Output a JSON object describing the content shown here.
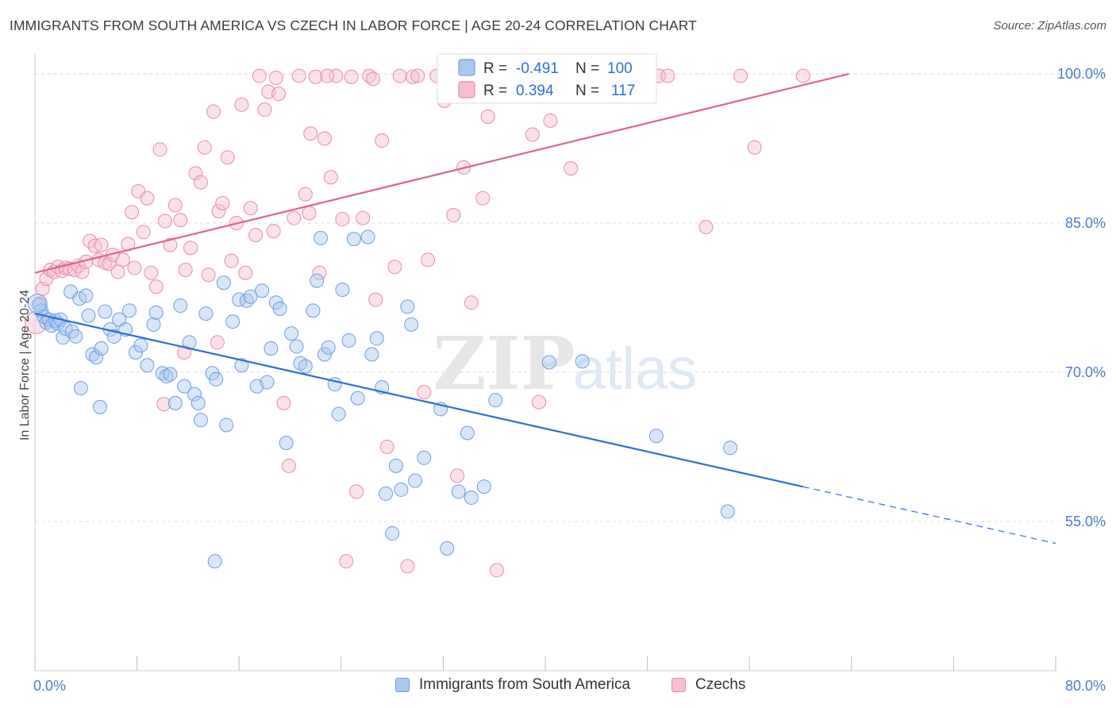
{
  "title": "IMMIGRANTS FROM SOUTH AMERICA VS CZECH IN LABOR FORCE | AGE 20-24 CORRELATION CHART",
  "source": "Source: ZipAtlas.com",
  "watermark": {
    "zip": "ZIP",
    "atlas": "atlas"
  },
  "colors": {
    "blue_fill": "#a8c8f0",
    "blue_stroke": "#6b9ee0",
    "blue_line": "#2a6fd6",
    "pink_fill": "#f7bfd0",
    "pink_stroke": "#e88aa8",
    "pink_line": "#e0628a",
    "axis_text": "#4a7cc9"
  },
  "legend_box": {
    "row1": {
      "r_label": "R =",
      "r_value": "-0.491",
      "n_label": "N =",
      "n_value": "100"
    },
    "row2": {
      "r_label": "R =",
      "r_value": "0.394",
      "n_label": "N =",
      "n_value": "117"
    }
  },
  "chart_data": {
    "type": "scatter",
    "title": "IMMIGRANTS FROM SOUTH AMERICA VS CZECH IN LABOR FORCE | AGE 20-24 CORRELATION CHART",
    "xlabel": "",
    "ylabel": "In Labor Force | Age 20-24",
    "xlim": [
      0,
      80
    ],
    "ylim": [
      40,
      102
    ],
    "x_tick_labels": [
      "0.0%",
      "80.0%"
    ],
    "y_ticks": [
      55,
      70,
      85,
      100
    ],
    "y_tick_labels": [
      "55.0%",
      "70.0%",
      "85.0%",
      "100.0%"
    ],
    "grid": "horizontal dashed",
    "legend_position": "bottom",
    "series": [
      {
        "name": "Immigrants from South America",
        "color": "#a8c8f0",
        "R": -0.491,
        "N": 100,
        "trend": {
          "x_start": 0,
          "y_start": 75.9,
          "x_solid_end": 60.2,
          "y_solid_end": 58.5,
          "x_end": 80,
          "y_end": 52.8
        },
        "points": [
          [
            0.3,
            76.8
          ],
          [
            0.5,
            76.2
          ],
          [
            0.7,
            75.6
          ],
          [
            0.9,
            75.0
          ],
          [
            1.1,
            75.3
          ],
          [
            1.3,
            74.7
          ],
          [
            1.6,
            75.2
          ],
          [
            1.8,
            74.9
          ],
          [
            2.0,
            75.3
          ],
          [
            2.2,
            73.5
          ],
          [
            2.4,
            74.4
          ],
          [
            2.9,
            74.1
          ],
          [
            3.2,
            73.6
          ],
          [
            2.8,
            78.1
          ],
          [
            3.5,
            77.4
          ],
          [
            4.0,
            77.7
          ],
          [
            4.2,
            75.7
          ],
          [
            4.5,
            71.8
          ],
          [
            4.8,
            71.5
          ],
          [
            5.2,
            72.4
          ],
          [
            5.5,
            76.1
          ],
          [
            5.9,
            74.3
          ],
          [
            6.2,
            73.6
          ],
          [
            6.6,
            75.3
          ],
          [
            7.1,
            74.3
          ],
          [
            7.4,
            76.2
          ],
          [
            7.9,
            72.0
          ],
          [
            8.3,
            72.7
          ],
          [
            8.8,
            70.7
          ],
          [
            9.3,
            74.8
          ],
          [
            9.5,
            76.0
          ],
          [
            10.0,
            69.9
          ],
          [
            10.3,
            69.6
          ],
          [
            10.6,
            69.8
          ],
          [
            11.0,
            66.9
          ],
          [
            11.4,
            76.7
          ],
          [
            11.7,
            68.6
          ],
          [
            12.1,
            73.0
          ],
          [
            12.5,
            67.8
          ],
          [
            12.8,
            66.9
          ],
          [
            13.0,
            65.2
          ],
          [
            13.4,
            75.9
          ],
          [
            13.9,
            69.9
          ],
          [
            14.2,
            69.3
          ],
          [
            14.8,
            79.0
          ],
          [
            15.0,
            64.7
          ],
          [
            15.5,
            75.1
          ],
          [
            16.0,
            77.3
          ],
          [
            16.2,
            70.7
          ],
          [
            16.6,
            77.2
          ],
          [
            16.9,
            77.6
          ],
          [
            17.4,
            68.6
          ],
          [
            17.8,
            78.2
          ],
          [
            18.2,
            69.0
          ],
          [
            18.5,
            72.4
          ],
          [
            18.9,
            77.0
          ],
          [
            19.2,
            76.4
          ],
          [
            19.7,
            62.9
          ],
          [
            20.1,
            73.9
          ],
          [
            20.5,
            72.6
          ],
          [
            20.8,
            70.9
          ],
          [
            21.2,
            70.6
          ],
          [
            21.8,
            76.2
          ],
          [
            22.1,
            79.2
          ],
          [
            22.4,
            83.5
          ],
          [
            22.7,
            71.8
          ],
          [
            23.0,
            72.5
          ],
          [
            23.5,
            68.8
          ],
          [
            23.8,
            65.8
          ],
          [
            24.1,
            78.3
          ],
          [
            24.6,
            73.2
          ],
          [
            25.0,
            83.4
          ],
          [
            25.3,
            67.4
          ],
          [
            26.1,
            83.6
          ],
          [
            26.4,
            71.8
          ],
          [
            26.8,
            73.4
          ],
          [
            27.2,
            68.5
          ],
          [
            27.5,
            57.8
          ],
          [
            28.0,
            53.8
          ],
          [
            28.3,
            60.6
          ],
          [
            28.7,
            58.2
          ],
          [
            29.2,
            76.6
          ],
          [
            29.5,
            74.8
          ],
          [
            29.8,
            59.1
          ],
          [
            30.5,
            61.4
          ],
          [
            31.8,
            66.3
          ],
          [
            32.3,
            52.3
          ],
          [
            33.2,
            58.0
          ],
          [
            33.9,
            63.9
          ],
          [
            34.2,
            57.4
          ],
          [
            35.2,
            58.5
          ],
          [
            36.1,
            67.2
          ],
          [
            40.3,
            71.0
          ],
          [
            42.9,
            71.1
          ],
          [
            48.7,
            63.6
          ],
          [
            54.5,
            62.4
          ],
          [
            54.3,
            56.0
          ],
          [
            14.1,
            51.0
          ],
          [
            3.6,
            68.4
          ],
          [
            5.1,
            66.5
          ]
        ]
      },
      {
        "name": "Czechs",
        "color": "#f7bfd0",
        "R": 0.394,
        "N": 117,
        "trend": {
          "x_start": 0,
          "y_start": 80.0,
          "x_end": 63.8,
          "y_end": 100.0
        },
        "points": [
          [
            0.4,
            76.9
          ],
          [
            0.6,
            78.4
          ],
          [
            0.9,
            79.4
          ],
          [
            1.2,
            80.3
          ],
          [
            1.5,
            80.1
          ],
          [
            1.8,
            80.6
          ],
          [
            2.1,
            80.2
          ],
          [
            2.4,
            80.5
          ],
          [
            2.7,
            80.4
          ],
          [
            3.1,
            80.3
          ],
          [
            3.4,
            80.7
          ],
          [
            3.7,
            80.1
          ],
          [
            4.0,
            81.1
          ],
          [
            4.3,
            83.2
          ],
          [
            4.7,
            82.7
          ],
          [
            5.0,
            81.3
          ],
          [
            5.2,
            82.8
          ],
          [
            5.5,
            81.0
          ],
          [
            5.8,
            80.9
          ],
          [
            6.1,
            81.8
          ],
          [
            6.5,
            80.1
          ],
          [
            6.9,
            81.3
          ],
          [
            7.3,
            82.9
          ],
          [
            7.6,
            86.1
          ],
          [
            8.1,
            88.2
          ],
          [
            8.5,
            84.1
          ],
          [
            8.8,
            87.5
          ],
          [
            9.1,
            80.0
          ],
          [
            9.5,
            78.6
          ],
          [
            9.8,
            92.4
          ],
          [
            10.2,
            85.2
          ],
          [
            10.6,
            82.8
          ],
          [
            11.0,
            86.8
          ],
          [
            11.4,
            85.3
          ],
          [
            11.8,
            80.3
          ],
          [
            12.2,
            82.5
          ],
          [
            12.6,
            90.0
          ],
          [
            13.0,
            89.1
          ],
          [
            13.3,
            92.6
          ],
          [
            13.6,
            79.8
          ],
          [
            14.0,
            96.2
          ],
          [
            14.4,
            86.2
          ],
          [
            14.7,
            87.0
          ],
          [
            15.1,
            91.6
          ],
          [
            15.4,
            81.2
          ],
          [
            15.8,
            85.0
          ],
          [
            16.2,
            96.9
          ],
          [
            16.5,
            80.0
          ],
          [
            16.9,
            86.5
          ],
          [
            17.3,
            83.8
          ],
          [
            17.6,
            99.8
          ],
          [
            18.0,
            96.4
          ],
          [
            18.3,
            98.2
          ],
          [
            18.7,
            84.2
          ],
          [
            19.1,
            98.0
          ],
          [
            19.5,
            66.9
          ],
          [
            19.9,
            60.6
          ],
          [
            20.3,
            85.5
          ],
          [
            20.7,
            99.8
          ],
          [
            21.2,
            87.9
          ],
          [
            21.6,
            94.0
          ],
          [
            22.0,
            99.7
          ],
          [
            22.3,
            80.0
          ],
          [
            22.7,
            93.5
          ],
          [
            23.2,
            89.6
          ],
          [
            23.6,
            99.8
          ],
          [
            24.1,
            85.4
          ],
          [
            24.4,
            51.0
          ],
          [
            24.8,
            99.7
          ],
          [
            25.2,
            58.0
          ],
          [
            25.7,
            85.5
          ],
          [
            26.2,
            99.8
          ],
          [
            26.7,
            77.3
          ],
          [
            27.2,
            93.3
          ],
          [
            27.6,
            62.5
          ],
          [
            28.2,
            80.6
          ],
          [
            28.6,
            99.8
          ],
          [
            29.2,
            50.5
          ],
          [
            29.6,
            99.7
          ],
          [
            30.0,
            99.8
          ],
          [
            30.8,
            81.3
          ],
          [
            31.5,
            99.8
          ],
          [
            32.1,
            97.3
          ],
          [
            32.8,
            85.8
          ],
          [
            33.1,
            59.6
          ],
          [
            33.6,
            90.6
          ],
          [
            34.2,
            77.0
          ],
          [
            35.1,
            87.5
          ],
          [
            35.5,
            95.7
          ],
          [
            36.2,
            50.1
          ],
          [
            36.6,
            99.8
          ],
          [
            37.4,
            99.8
          ],
          [
            39.0,
            93.9
          ],
          [
            40.4,
            95.3
          ],
          [
            41.1,
            99.7
          ],
          [
            42.0,
            90.5
          ],
          [
            43.9,
            99.8
          ],
          [
            44.5,
            99.8
          ],
          [
            47.9,
            99.8
          ],
          [
            48.9,
            99.8
          ],
          [
            49.6,
            99.8
          ],
          [
            52.6,
            84.6
          ],
          [
            55.3,
            99.8
          ],
          [
            56.4,
            92.6
          ],
          [
            60.2,
            99.8
          ],
          [
            14.3,
            73.0
          ],
          [
            11.7,
            72.0
          ],
          [
            39.5,
            67.0
          ],
          [
            30.5,
            68.0
          ],
          [
            10.1,
            66.8
          ],
          [
            18.9,
            99.6
          ],
          [
            26.5,
            99.5
          ],
          [
            34.5,
            99.6
          ],
          [
            45.1,
            99.7
          ],
          [
            22.9,
            99.8
          ],
          [
            7.8,
            80.5
          ],
          [
            21.5,
            86.0
          ]
        ]
      }
    ]
  }
}
